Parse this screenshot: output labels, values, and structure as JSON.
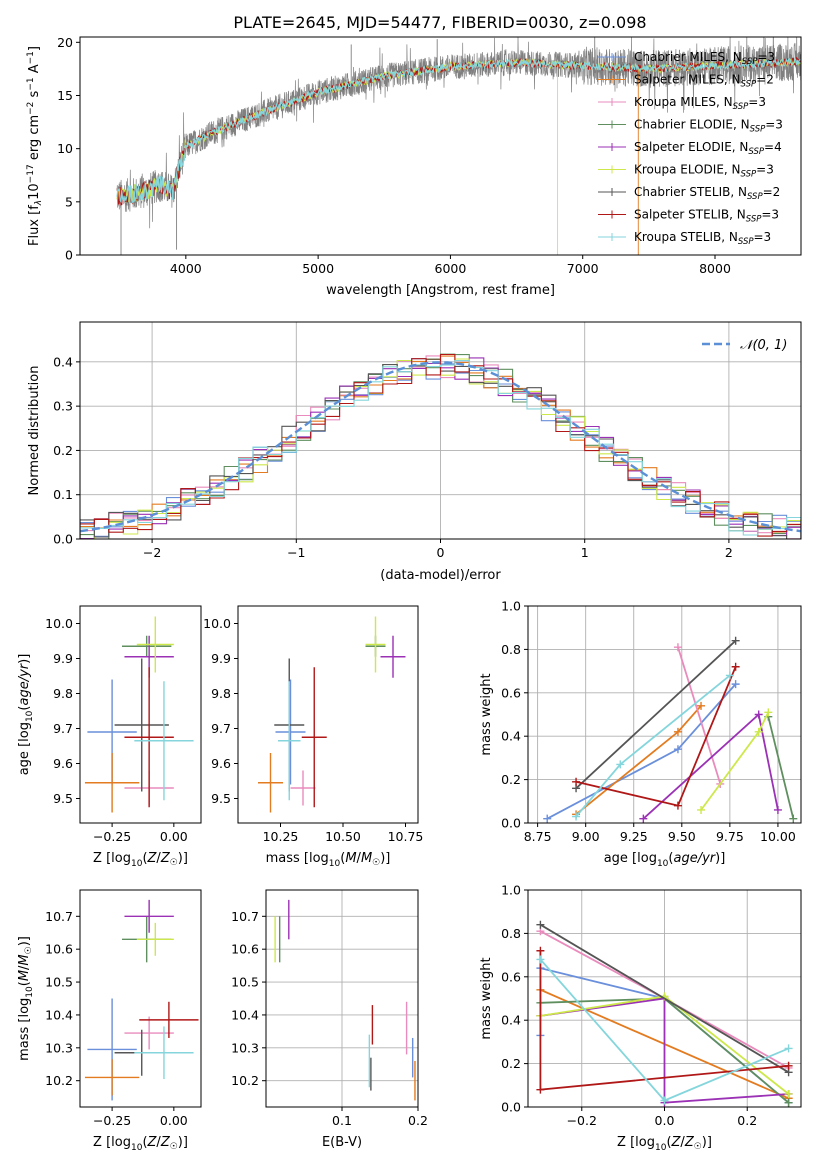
{
  "figure_title": "PLATE=2645, MJD=54477, FIBERID=0030, z=0.098",
  "colors": {
    "Chabrier MILES": "#6a8fdb",
    "Salpeter MILES": "#e37b20",
    "Kroupa MILES": "#e98bbd",
    "Chabrier ELODIE": "#5f8f5f",
    "Salpeter ELODIE": "#9b31b5",
    "Kroupa ELODIE": "#cde84a",
    "Chabrier STELIB": "#555555",
    "Salpeter STELIB": "#b01818",
    "Kroupa STELIB": "#84d6dc",
    "spectrum": "#808080",
    "normal_curve": "#5b8fd6",
    "grid": "#b0b0b0"
  },
  "chart_data": [
    {
      "id": "spectrum",
      "type": "line",
      "xlabel": "wavelength [Angstrom, rest frame]",
      "ylabel_parts": [
        "Flux [f",
        "λ",
        "10",
        "−17",
        " erg cm",
        "−2",
        " s",
        "−1",
        " A",
        "−1",
        "]"
      ],
      "xlim": [
        3200,
        8650
      ],
      "ylim": [
        0,
        20.5
      ],
      "xticks": [
        4000,
        5000,
        6000,
        7000,
        8000
      ],
      "yticks": [
        0,
        5,
        10,
        15,
        20
      ],
      "grid": false,
      "legend_position": "upper right",
      "data_range": [
        3480,
        8650
      ],
      "legend": [
        {
          "label": "Chabrier MILES",
          "nssp": "3"
        },
        {
          "label": "Salpeter MILES",
          "nssp": "2"
        },
        {
          "label": "Kroupa MILES",
          "nssp": "3"
        },
        {
          "label": "Chabrier ELODIE",
          "nssp": "3"
        },
        {
          "label": "Salpeter ELODIE",
          "nssp": "4"
        },
        {
          "label": "Kroupa ELODIE",
          "nssp": "3"
        },
        {
          "label": "Chabrier STELIB",
          "nssp": "2"
        },
        {
          "label": "Salpeter STELIB",
          "nssp": "3"
        },
        {
          "label": "Kroupa STELIB",
          "nssp": "3"
        }
      ],
      "continuum": {
        "wavelength": [
          3480,
          3600,
          3700,
          3800,
          3900,
          4000,
          4200,
          4500,
          5000,
          5500,
          6000,
          6500,
          7000,
          7500,
          8000,
          8500,
          8650
        ],
        "flux": [
          5.5,
          5.7,
          6.0,
          6.6,
          6.0,
          10.2,
          11.5,
          13.0,
          15.3,
          16.8,
          17.7,
          18.1,
          17.8,
          17.5,
          17.8,
          18.1,
          18.2
        ]
      },
      "spikes": [
        {
          "x": 3510,
          "y": 0.0
        },
        {
          "x": 3930,
          "y": 0.5
        },
        {
          "x": 6810,
          "y": 0.0
        },
        {
          "x": 7420,
          "y": 0.0
        },
        {
          "x": 5250,
          "y": 19.8
        },
        {
          "x": 5900,
          "y": 20.3
        }
      ]
    },
    {
      "id": "residuals",
      "type": "step",
      "xlabel": "(data-model)/error",
      "ylabel": "Normed distribution",
      "xlim": [
        -2.5,
        2.5
      ],
      "ylim": [
        0,
        0.49
      ],
      "xticks": [
        -2,
        -1,
        0,
        1,
        2
      ],
      "yticks": [
        0.0,
        0.1,
        0.2,
        0.3,
        0.4
      ],
      "grid": true,
      "legend_position": "upper right",
      "legend": [
        "𝒩(0, 1)"
      ],
      "bin_width": 0.1
    },
    {
      "id": "age-vs-Z",
      "type": "errorbar",
      "xlabel": "Z [log10(Z/Z☉)]",
      "ylabel": "age  [log10(age/yr)]",
      "xlim": [
        -0.38,
        0.11
      ],
      "ylim": [
        9.43,
        10.05
      ],
      "xticks": [
        -0.25,
        0.0
      ],
      "xticklabels": [
        "−0.25",
        "0.00"
      ],
      "yticks": [
        9.5,
        9.6,
        9.7,
        9.8,
        9.9,
        10.0
      ],
      "grid": false,
      "points": [
        {
          "model": "Chabrier MILES",
          "x": -0.25,
          "xerr": 0.1,
          "y": 9.69,
          "yerr": 0.15
        },
        {
          "model": "Salpeter MILES",
          "x": -0.25,
          "xerr": 0.11,
          "y": 9.545,
          "yerr": 0.085
        },
        {
          "model": "Kroupa MILES",
          "x": -0.1,
          "xerr": 0.1,
          "y": 9.53,
          "yerr": 0.05
        },
        {
          "model": "Chabrier ELODIE",
          "x": -0.11,
          "xerr": 0.1,
          "y": 9.935,
          "yerr": 0.03
        },
        {
          "model": "Salpeter ELODIE",
          "x": -0.1,
          "xerr": 0.1,
          "y": 9.905,
          "yerr": 0.06
        },
        {
          "model": "Kroupa ELODIE",
          "x": -0.075,
          "xerr": 0.075,
          "y": 9.94,
          "yerr": 0.08
        },
        {
          "model": "Chabrier STELIB",
          "x": -0.13,
          "xerr": 0.11,
          "y": 9.71,
          "yerr": 0.19
        },
        {
          "model": "Salpeter STELIB",
          "x": -0.1,
          "xerr": 0.1,
          "y": 9.675,
          "yerr": 0.2
        },
        {
          "model": "Kroupa STELIB",
          "x": -0.04,
          "xerr": 0.12,
          "y": 9.665,
          "yerr": 0.17
        }
      ]
    },
    {
      "id": "age-vs-mass",
      "type": "errorbar",
      "xlabel": "mass [log10(M/M☉)]",
      "xlim": [
        10.08,
        10.8
      ],
      "ylim": [
        9.43,
        10.05
      ],
      "xticks": [
        10.25,
        10.5,
        10.75
      ],
      "xticklabels": [
        "10.25",
        "10.50",
        "10.75"
      ],
      "yticks": [
        9.5,
        9.6,
        9.7,
        9.8,
        9.9,
        10.0
      ],
      "grid": false,
      "points": [
        {
          "model": "Chabrier MILES",
          "x": 10.29,
          "xerr": 0.06,
          "y": 9.69,
          "yerr": 0.15
        },
        {
          "model": "Salpeter MILES",
          "x": 10.21,
          "xerr": 0.05,
          "y": 9.545,
          "yerr": 0.085
        },
        {
          "model": "Kroupa MILES",
          "x": 10.34,
          "xerr": 0.05,
          "y": 9.53,
          "yerr": 0.05
        },
        {
          "model": "Chabrier ELODIE",
          "x": 10.63,
          "xerr": 0.04,
          "y": 9.935,
          "yerr": 0.03
        },
        {
          "model": "Salpeter ELODIE",
          "x": 10.7,
          "xerr": 0.05,
          "y": 9.905,
          "yerr": 0.06
        },
        {
          "model": "Kroupa ELODIE",
          "x": 10.63,
          "xerr": 0.04,
          "y": 9.94,
          "yerr": 0.08
        },
        {
          "model": "Chabrier STELIB",
          "x": 10.285,
          "xerr": 0.06,
          "y": 9.71,
          "yerr": 0.19
        },
        {
          "model": "Salpeter STELIB",
          "x": 10.385,
          "xerr": 0.05,
          "y": 9.675,
          "yerr": 0.2
        },
        {
          "model": "Kroupa STELIB",
          "x": 10.285,
          "xerr": 0.045,
          "y": 9.665,
          "yerr": 0.17
        }
      ]
    },
    {
      "id": "weight-vs-age",
      "type": "line",
      "xlabel": "age  [log10(age/yr)]",
      "ylabel": "mass weight",
      "xlim": [
        8.7,
        10.12
      ],
      "ylim": [
        0,
        1.0
      ],
      "xticks": [
        8.75,
        9.0,
        9.25,
        9.5,
        9.75,
        10.0
      ],
      "xticklabels": [
        "8.75",
        "9.00",
        "9.25",
        "9.50",
        "9.75",
        "10.00"
      ],
      "yticks": [
        0.0,
        0.2,
        0.4,
        0.6,
        0.8,
        1.0
      ],
      "grid": true,
      "series": [
        {
          "model": "Chabrier MILES",
          "x": [
            8.8,
            9.48,
            9.78
          ],
          "y": [
            0.02,
            0.34,
            0.64
          ]
        },
        {
          "model": "Salpeter MILES",
          "x": [
            8.95,
            9.48,
            9.6
          ],
          "y": [
            0.04,
            0.42,
            0.54
          ]
        },
        {
          "model": "Kroupa MILES",
          "x": [
            9.48,
            9.7
          ],
          "y": [
            0.81,
            0.18
          ]
        },
        {
          "model": "Chabrier ELODIE",
          "x": [
            9.95,
            10.08
          ],
          "y": [
            0.49,
            0.02
          ]
        },
        {
          "model": "Salpeter ELODIE",
          "x": [
            9.3,
            9.9,
            10.0
          ],
          "y": [
            0.02,
            0.5,
            0.06
          ]
        },
        {
          "model": "Kroupa ELODIE",
          "x": [
            9.6,
            9.9,
            9.95
          ],
          "y": [
            0.06,
            0.42,
            0.51
          ]
        },
        {
          "model": "Chabrier STELIB",
          "x": [
            8.95,
            9.78
          ],
          "y": [
            0.16,
            0.84
          ]
        },
        {
          "model": "Salpeter STELIB",
          "x": [
            8.95,
            9.48,
            9.78
          ],
          "y": [
            0.19,
            0.08,
            0.72
          ]
        },
        {
          "model": "Kroupa STELIB",
          "x": [
            8.95,
            9.18,
            9.75
          ],
          "y": [
            0.03,
            0.27,
            0.68
          ]
        }
      ]
    },
    {
      "id": "mass-vs-Z",
      "type": "errorbar",
      "xlabel": "Z [log10(Z/Z☉)]",
      "ylabel": "mass [log10(M/M☉)]",
      "xlim": [
        -0.38,
        0.11
      ],
      "ylim": [
        10.12,
        10.78
      ],
      "xticks": [
        -0.25,
        0.0
      ],
      "xticklabels": [
        "−0.25",
        "0.00"
      ],
      "yticks": [
        10.2,
        10.3,
        10.4,
        10.5,
        10.6,
        10.7
      ],
      "grid": false,
      "points": [
        {
          "model": "Chabrier MILES",
          "x": -0.25,
          "xerr": 0.1,
          "y": 10.295,
          "yerr": 0.155
        },
        {
          "model": "Salpeter MILES",
          "x": -0.25,
          "xerr": 0.11,
          "y": 10.21,
          "yerr": 0.055
        },
        {
          "model": "Kroupa MILES",
          "x": -0.1,
          "xerr": 0.1,
          "y": 10.345,
          "yerr": 0.05
        },
        {
          "model": "Chabrier ELODIE",
          "x": -0.11,
          "xerr": 0.1,
          "y": 10.63,
          "yerr": 0.07
        },
        {
          "model": "Salpeter ELODIE",
          "x": -0.1,
          "xerr": 0.1,
          "y": 10.7,
          "yerr": 0.05
        },
        {
          "model": "Kroupa ELODIE",
          "x": -0.075,
          "xerr": 0.075,
          "y": 10.63,
          "yerr": 0.05
        },
        {
          "model": "Chabrier STELIB",
          "x": -0.13,
          "xerr": 0.11,
          "y": 10.285,
          "yerr": 0.07
        },
        {
          "model": "Salpeter STELIB",
          "x": -0.02,
          "xerr": 0.12,
          "y": 10.385,
          "yerr": 0.055
        },
        {
          "model": "Kroupa STELIB",
          "x": -0.04,
          "xerr": 0.12,
          "y": 10.285,
          "yerr": 0.08
        }
      ]
    },
    {
      "id": "mass-vs-ebv",
      "type": "errorbar",
      "xlabel": "E(B-V)",
      "xlim": [
        0.0,
        0.2
      ],
      "ylim": [
        10.12,
        10.78
      ],
      "xticks": [
        0.1,
        0.2
      ],
      "xticklabels": [
        "0.1",
        "0.2"
      ],
      "yticks": [
        10.2,
        10.3,
        10.4,
        10.5,
        10.6,
        10.7
      ],
      "grid": true,
      "points": [
        {
          "model": "Chabrier MILES",
          "x": 0.193,
          "y": 10.27,
          "yerr": 0.06
        },
        {
          "model": "Salpeter MILES",
          "x": 0.196,
          "y": 10.2,
          "yerr": 0.06
        },
        {
          "model": "Kroupa MILES",
          "x": 0.185,
          "y": 10.36,
          "yerr": 0.08
        },
        {
          "model": "Chabrier ELODIE",
          "x": 0.018,
          "y": 10.63,
          "yerr": 0.07
        },
        {
          "model": "Salpeter ELODIE",
          "x": 0.03,
          "y": 10.69,
          "yerr": 0.06
        },
        {
          "model": "Kroupa ELODIE",
          "x": 0.012,
          "y": 10.63,
          "yerr": 0.07
        },
        {
          "model": "Chabrier STELIB",
          "x": 0.138,
          "y": 10.22,
          "yerr": 0.05
        },
        {
          "model": "Salpeter STELIB",
          "x": 0.14,
          "y": 10.37,
          "yerr": 0.06
        },
        {
          "model": "Kroupa STELIB",
          "x": 0.136,
          "y": 10.26,
          "yerr": 0.08
        }
      ]
    },
    {
      "id": "weight-vs-Z",
      "type": "line",
      "xlabel": "Z [log10(Z/Z☉)]",
      "ylabel": "mass weight",
      "xlim": [
        -0.33,
        0.33
      ],
      "ylim": [
        0,
        1.0
      ],
      "xticks": [
        -0.2,
        0.0,
        0.2
      ],
      "xticklabels": [
        "−0.2",
        "0.0",
        "0.2"
      ],
      "yticks": [
        0.0,
        0.2,
        0.4,
        0.6,
        0.8,
        1.0
      ],
      "grid": true,
      "series": [
        {
          "model": "Chabrier MILES",
          "x": [
            -0.3,
            -0.3,
            0.0,
            0.3
          ],
          "y": [
            0.33,
            0.64,
            0.5,
            0.02
          ]
        },
        {
          "model": "Salpeter MILES",
          "x": [
            -0.3,
            -0.3,
            0.3,
            0.3
          ],
          "y": [
            0.42,
            0.54,
            0.04,
            0.04
          ]
        },
        {
          "model": "Kroupa MILES",
          "x": [
            -0.3,
            0.0,
            0.3
          ],
          "y": [
            0.81,
            0.5,
            0.18
          ]
        },
        {
          "model": "Chabrier ELODIE",
          "x": [
            -0.3,
            0.0,
            0.3
          ],
          "y": [
            0.48,
            0.5,
            0.02
          ]
        },
        {
          "model": "Salpeter ELODIE",
          "x": [
            -0.3,
            0.0,
            0.0,
            0.3
          ],
          "y": [
            0.42,
            0.5,
            0.02,
            0.06
          ]
        },
        {
          "model": "Kroupa ELODIE",
          "x": [
            -0.3,
            0.0,
            0.3
          ],
          "y": [
            0.42,
            0.51,
            0.06
          ]
        },
        {
          "model": "Chabrier STELIB",
          "x": [
            -0.3,
            0.3
          ],
          "y": [
            0.84,
            0.16
          ]
        },
        {
          "model": "Salpeter STELIB",
          "x": [
            -0.3,
            -0.3,
            0.3
          ],
          "y": [
            0.72,
            0.08,
            0.19
          ]
        },
        {
          "model": "Kroupa STELIB",
          "x": [
            -0.3,
            0.0,
            0.3
          ],
          "y": [
            0.68,
            0.03,
            0.27
          ]
        }
      ]
    }
  ]
}
